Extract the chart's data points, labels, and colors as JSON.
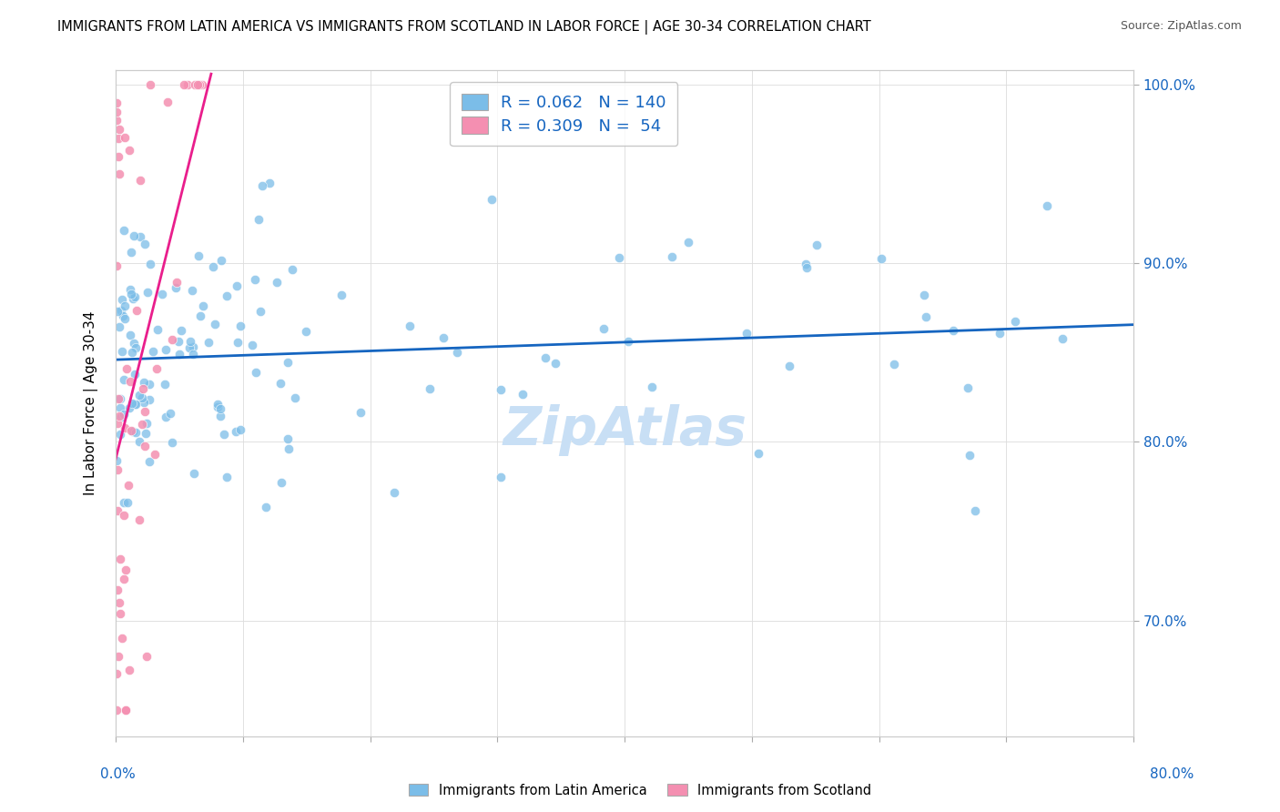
{
  "title": "IMMIGRANTS FROM LATIN AMERICA VS IMMIGRANTS FROM SCOTLAND IN LABOR FORCE | AGE 30-34 CORRELATION CHART",
  "source": "Source: ZipAtlas.com",
  "ylabel": "In Labor Force | Age 30-34",
  "xmin": 0.0,
  "xmax": 0.8,
  "ymin": 0.635,
  "ymax": 1.008,
  "yticks": [
    0.7,
    0.8,
    0.9,
    1.0
  ],
  "ytick_labels": [
    "70.0%",
    "80.0%",
    "90.0%",
    "100.0%"
  ],
  "color_blue": "#7bbde8",
  "color_pink": "#f48fb1",
  "color_trend_blue": "#1565c0",
  "color_trend_pink": "#e91e8c",
  "color_text_blue": "#1565c0",
  "color_grid": "#dddddd",
  "watermark_color": "#c8dff5",
  "r1": "0.062",
  "n1": "140",
  "r2": "0.309",
  "n2": " 54"
}
